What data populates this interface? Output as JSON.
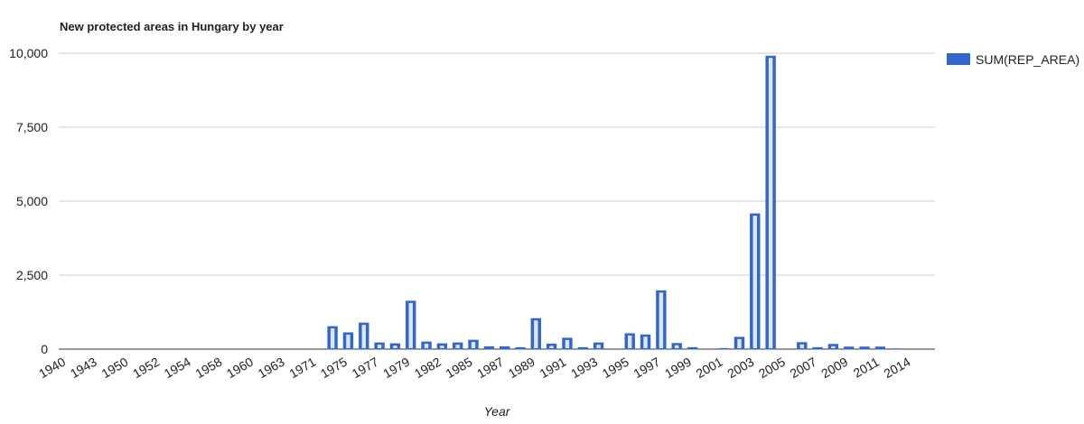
{
  "chart_data": {
    "type": "bar",
    "title": "New protected areas in Hungary by year",
    "x_label": "Year",
    "categories": [
      "1940",
      null,
      "1943",
      null,
      "1950",
      null,
      "1952",
      null,
      "1954",
      null,
      "1958",
      null,
      "1960",
      null,
      "1963",
      null,
      "1971",
      null,
      "1975",
      null,
      "1977",
      null,
      "1979",
      null,
      "1982",
      null,
      "1985",
      null,
      "1987",
      null,
      "1989",
      null,
      "1991",
      null,
      "1993",
      null,
      "1995",
      null,
      "1997",
      null,
      "1999",
      null,
      "2001",
      null,
      "2003",
      null,
      "2005",
      null,
      "2007",
      null,
      "2009",
      null,
      "2011",
      null,
      "2014",
      null
    ],
    "series": [
      {
        "name": "SUM(REP_AREA)",
        "color": "#3366cc",
        "values": [
          0,
          0,
          0,
          0,
          0,
          0,
          0,
          0,
          0,
          0,
          0,
          0,
          0,
          0,
          0,
          0,
          0,
          760,
          550,
          880,
          210,
          180,
          1620,
          240,
          180,
          210,
          300,
          80,
          80,
          50,
          1030,
          170,
          370,
          50,
          210,
          0,
          520,
          480,
          1970,
          190,
          50,
          0,
          20,
          400,
          4570,
          9900,
          0,
          220,
          50,
          160,
          70,
          70,
          70,
          10,
          0,
          0
        ]
      }
    ],
    "ylim": [
      0,
      10000
    ],
    "yticks": [
      0,
      {
        "value": 2500,
        "label": "2,500"
      },
      {
        "value": 5000,
        "label": "5,000"
      },
      {
        "value": 7500,
        "label": "7,500"
      },
      {
        "value": 10000,
        "label": "10,000"
      }
    ],
    "grid": true,
    "legend": "top-right"
  }
}
